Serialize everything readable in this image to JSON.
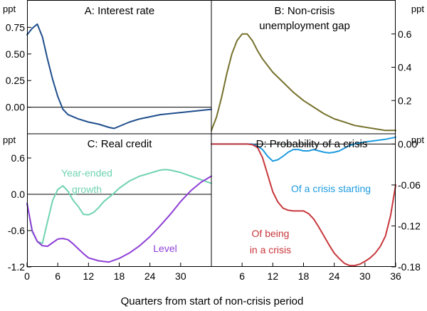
{
  "figure": {
    "xlabel": "Quarters from start of non-crisis period"
  },
  "chart_data": [
    {
      "type": "line",
      "id": "A",
      "title": "A: Interest rate",
      "unit_label": "ppt",
      "axis_side": "left",
      "xlim": [
        0,
        36
      ],
      "ylim": [
        -0.25,
        1.0
      ],
      "yticks": [
        0.0,
        0.25,
        0.5,
        0.75
      ],
      "ytick_labels": [
        "0.00",
        "0.25",
        "0.50",
        "0.75"
      ],
      "zero_line": 0,
      "series": [
        {
          "name": "Interest rate",
          "color": "#1f4e8c",
          "x": [
            0,
            1,
            2,
            3,
            4,
            5,
            6,
            7,
            8,
            10,
            12,
            14,
            16,
            17,
            18,
            20,
            22,
            24,
            26,
            28,
            30,
            32,
            34,
            36
          ],
          "y": [
            0.68,
            0.74,
            0.78,
            0.66,
            0.45,
            0.26,
            0.1,
            -0.02,
            -0.07,
            -0.11,
            -0.14,
            -0.16,
            -0.19,
            -0.2,
            -0.18,
            -0.14,
            -0.11,
            -0.09,
            -0.07,
            -0.06,
            -0.05,
            -0.04,
            -0.03,
            -0.02
          ]
        }
      ]
    },
    {
      "type": "line",
      "id": "B",
      "title": "B: Non-crisis unemployment gap",
      "title_lines": [
        "B: Non-crisis",
        "unemployment gap"
      ],
      "unit_label": "ppt",
      "axis_side": "right",
      "xlim": [
        0,
        36
      ],
      "ylim": [
        0.0,
        0.8
      ],
      "yticks": [
        0.2,
        0.4,
        0.6
      ],
      "ytick_labels": [
        "0.2",
        "0.4",
        "0.6"
      ],
      "series": [
        {
          "name": "Unemployment gap",
          "color": "#76712c",
          "x": [
            0,
            1,
            2,
            3,
            4,
            5,
            6,
            7,
            8,
            9,
            10,
            12,
            14,
            16,
            18,
            20,
            22,
            24,
            26,
            28,
            30,
            32,
            34,
            36
          ],
          "y": [
            0.02,
            0.1,
            0.22,
            0.36,
            0.48,
            0.56,
            0.6,
            0.6,
            0.56,
            0.5,
            0.45,
            0.37,
            0.31,
            0.25,
            0.2,
            0.16,
            0.12,
            0.09,
            0.07,
            0.05,
            0.04,
            0.03,
            0.02,
            0.02
          ]
        }
      ]
    },
    {
      "type": "line",
      "id": "C",
      "title": "C: Real credit",
      "unit_label": "ppt",
      "axis_side": "left",
      "xlim": [
        0,
        36
      ],
      "ylim": [
        -1.2,
        1.0
      ],
      "yticks": [
        -1.2,
        -0.6,
        0.0,
        0.6
      ],
      "ytick_labels": [
        "-1.2",
        "-0.6",
        "0.0",
        "0.6"
      ],
      "xticks": [
        0,
        6,
        12,
        18,
        24,
        30
      ],
      "xtick_labels": [
        "0",
        "6",
        "12",
        "18",
        "24",
        "30"
      ],
      "zero_line": 0,
      "series": [
        {
          "name": "Year-ended growth",
          "label_lines": [
            "Year-ended",
            "growth"
          ],
          "color": "#6fd3b1",
          "x": [
            0,
            1,
            2,
            3,
            4,
            5,
            6,
            7,
            8,
            9,
            10,
            11,
            12,
            13,
            14,
            15,
            16,
            17,
            18,
            20,
            22,
            24,
            26,
            27,
            28,
            30,
            32,
            34,
            36
          ],
          "y": [
            -0.15,
            -0.62,
            -0.78,
            -0.81,
            -0.45,
            -0.1,
            0.08,
            0.14,
            0.05,
            -0.1,
            -0.2,
            -0.33,
            -0.34,
            -0.3,
            -0.22,
            -0.12,
            -0.05,
            0.02,
            0.1,
            0.22,
            0.3,
            0.35,
            0.4,
            0.41,
            0.4,
            0.36,
            0.3,
            0.24,
            0.18
          ]
        },
        {
          "name": "Level",
          "label_lines": [
            "Level"
          ],
          "color": "#8e3fd6",
          "x": [
            0,
            1,
            2,
            3,
            4,
            5,
            6,
            7,
            8,
            9,
            10,
            11,
            12,
            14,
            16,
            18,
            20,
            22,
            24,
            26,
            28,
            30,
            32,
            34,
            36
          ],
          "y": [
            -0.15,
            -0.6,
            -0.78,
            -0.85,
            -0.86,
            -0.8,
            -0.74,
            -0.73,
            -0.75,
            -0.82,
            -0.9,
            -0.98,
            -1.05,
            -1.1,
            -1.12,
            -1.06,
            -0.97,
            -0.85,
            -0.7,
            -0.52,
            -0.33,
            -0.12,
            0.06,
            0.2,
            0.3
          ]
        }
      ]
    },
    {
      "type": "line",
      "id": "D",
      "title": "D: Probability of a crisis",
      "unit_label": "ppt",
      "axis_side": "right",
      "xlim": [
        0,
        36
      ],
      "ylim": [
        -0.18,
        0.015
      ],
      "yticks": [
        -0.18,
        -0.12,
        -0.06,
        0.0
      ],
      "ytick_labels": [
        "-0.18",
        "-0.12",
        "-0.06",
        "0.00"
      ],
      "xticks": [
        6,
        12,
        18,
        24,
        30,
        36
      ],
      "xtick_labels": [
        "6",
        "12",
        "18",
        "24",
        "30",
        "36"
      ],
      "zero_line": 0,
      "series": [
        {
          "name": "Of a crisis starting",
          "label_lines": [
            "Of a crisis starting"
          ],
          "color": "#1e9be0",
          "x": [
            0,
            2,
            4,
            6,
            8,
            9,
            10,
            11,
            12,
            13,
            14,
            15,
            16,
            17,
            18,
            19,
            20,
            21,
            22,
            23,
            24,
            25,
            26,
            27,
            28,
            29,
            30,
            32,
            34,
            36
          ],
          "y": [
            0.0,
            0.0,
            0.0,
            0.0,
            0.0,
            -0.003,
            -0.008,
            -0.018,
            -0.025,
            -0.023,
            -0.018,
            -0.012,
            -0.008,
            -0.008,
            -0.01,
            -0.01,
            -0.008,
            -0.01,
            -0.012,
            -0.013,
            -0.012,
            -0.01,
            -0.006,
            -0.002,
            0.0,
            0.002,
            0.003,
            0.005,
            0.007,
            0.01
          ]
        },
        {
          "name": "Of being in a crisis",
          "label_lines": [
            "Of being",
            "in a crisis"
          ],
          "color": "#c8373c",
          "x": [
            0,
            2,
            4,
            6,
            7,
            8,
            9,
            10,
            11,
            12,
            13,
            14,
            15,
            16,
            17,
            18,
            19,
            20,
            21,
            22,
            23,
            24,
            25,
            26,
            27,
            28,
            29,
            30,
            31,
            32,
            33,
            34,
            35,
            36
          ],
          "y": [
            0.0,
            0.0,
            0.0,
            0.0,
            0.0,
            -0.001,
            -0.005,
            -0.02,
            -0.045,
            -0.07,
            -0.085,
            -0.094,
            -0.097,
            -0.098,
            -0.098,
            -0.098,
            -0.102,
            -0.11,
            -0.122,
            -0.135,
            -0.148,
            -0.16,
            -0.168,
            -0.175,
            -0.178,
            -0.178,
            -0.176,
            -0.172,
            -0.167,
            -0.16,
            -0.15,
            -0.135,
            -0.105,
            -0.06
          ]
        }
      ]
    }
  ]
}
